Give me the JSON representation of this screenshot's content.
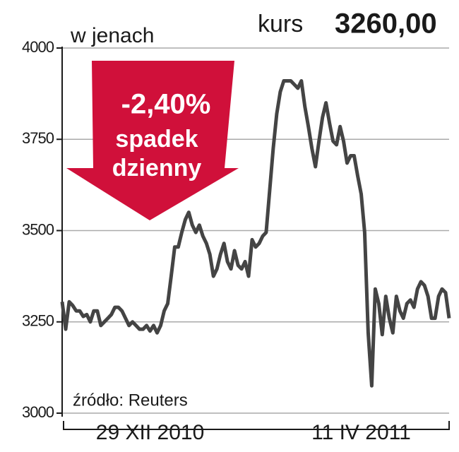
{
  "chart_data": {
    "type": "line",
    "title": "kurs",
    "subtitle": "3260,00",
    "y_label": "w jenach",
    "source": "źródło: Reuters",
    "annotation": {
      "change": "-2,40%",
      "line1": "spadek",
      "line2": "dzienny",
      "color": "#d0103a"
    },
    "categories": [
      null,
      null,
      null,
      null,
      null,
      null,
      null,
      null,
      null,
      null,
      null,
      null,
      null,
      null,
      null,
      null,
      null,
      null,
      null,
      null,
      null,
      null,
      null,
      null,
      null,
      "29 XII 2010",
      null,
      null,
      null,
      null,
      null,
      null,
      null,
      null,
      null,
      null,
      null,
      null,
      null,
      null,
      null,
      null,
      null,
      null,
      null,
      null,
      null,
      null,
      null,
      null,
      null,
      null,
      null,
      null,
      null,
      null,
      null,
      null,
      null,
      null,
      null,
      null,
      null,
      null,
      null,
      null,
      null,
      null,
      null,
      null,
      null,
      null,
      null,
      null,
      null,
      null,
      null,
      null,
      null,
      null,
      null,
      null,
      null,
      null,
      null,
      "11 IV 2011",
      null,
      null,
      null,
      null,
      null,
      null,
      null,
      null,
      null,
      null,
      null,
      null,
      null,
      null,
      null,
      null,
      null,
      null,
      null,
      null,
      null,
      null,
      null,
      null,
      null
    ],
    "series": [
      {
        "name": "kurs",
        "color": "#444444",
        "values": [
          3305,
          3230,
          3305,
          3295,
          3280,
          3280,
          3265,
          3270,
          3250,
          3280,
          3280,
          3240,
          3250,
          3260,
          3270,
          3290,
          3290,
          3280,
          3260,
          3240,
          3250,
          3240,
          3230,
          3230,
          3240,
          3225,
          3240,
          3220,
          3240,
          3280,
          3300,
          3375,
          3455,
          3455,
          3495,
          3530,
          3550,
          3515,
          3495,
          3515,
          3485,
          3465,
          3435,
          3375,
          3395,
          3435,
          3465,
          3415,
          3395,
          3445,
          3405,
          3395,
          3415,
          3375,
          3475,
          3455,
          3465,
          3485,
          3495,
          3610,
          3725,
          3820,
          3880,
          3910,
          3910,
          3910,
          3900,
          3890,
          3910,
          3840,
          3785,
          3725,
          3675,
          3745,
          3810,
          3850,
          3795,
          3745,
          3735,
          3785,
          3745,
          3685,
          3705,
          3705,
          3650,
          3600,
          3495,
          3220,
          3075,
          3340,
          3300,
          3215,
          3320,
          3260,
          3220,
          3320,
          3280,
          3260,
          3300,
          3310,
          3290,
          3340,
          3360,
          3350,
          3320,
          3260,
          3260,
          3320,
          3340,
          3330,
          3260
        ]
      }
    ],
    "ylim": [
      3000,
      4000
    ],
    "yticks": [
      3000,
      3250,
      3500,
      3750,
      4000
    ],
    "grid": true
  }
}
